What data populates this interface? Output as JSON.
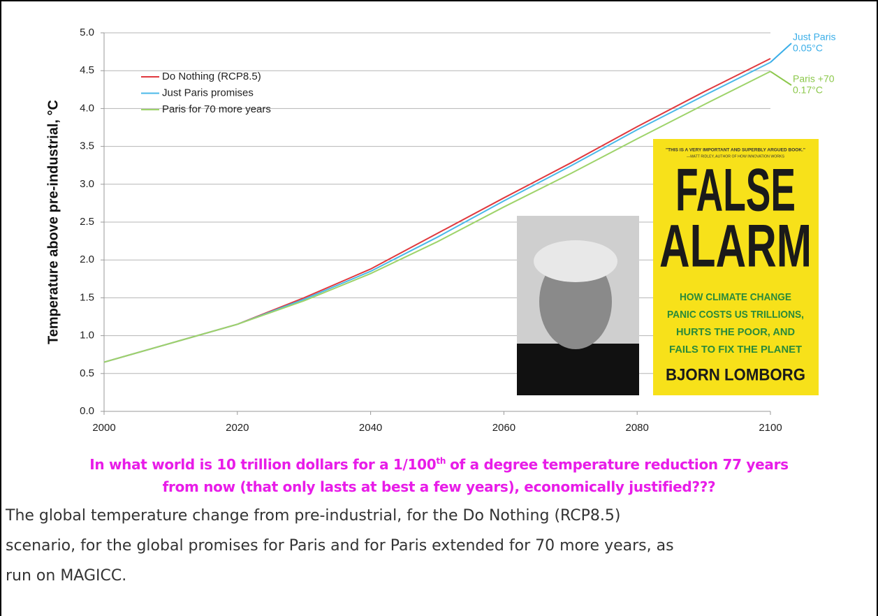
{
  "chart_data": {
    "type": "line",
    "y_label": "Temperature above pre-industrial, °C",
    "x": [
      2000,
      2010,
      2020,
      2030,
      2040,
      2050,
      2060,
      2070,
      2080,
      2090,
      2100
    ],
    "series": [
      {
        "name": "Do Nothing (RCP8.5)",
        "color": "#e0393e",
        "values": [
          0.65,
          0.9,
          1.15,
          1.5,
          1.88,
          2.35,
          2.82,
          3.28,
          3.76,
          4.22,
          4.66
        ]
      },
      {
        "name": "Just Paris promises",
        "color": "#4ab8e8",
        "values": [
          0.65,
          0.9,
          1.15,
          1.48,
          1.85,
          2.3,
          2.78,
          3.24,
          3.72,
          4.17,
          4.61
        ]
      },
      {
        "name": "Paris for 70 more years",
        "color": "#9ed36a",
        "values": [
          0.65,
          0.9,
          1.15,
          1.46,
          1.82,
          2.24,
          2.7,
          3.14,
          3.6,
          4.05,
          4.49
        ]
      }
    ],
    "xlim": [
      2000,
      2100
    ],
    "xticks": [
      2000,
      2020,
      2040,
      2060,
      2080,
      2100
    ],
    "ylim": [
      0,
      5
    ],
    "yticks": [
      {
        "value": 0,
        "label": "0.0"
      },
      0.5,
      {
        "value": 1,
        "label": "1.0"
      },
      1.5,
      {
        "value": 2,
        "label": "2.0"
      },
      2.5,
      {
        "value": 3,
        "label": "3.0"
      },
      3.5,
      {
        "value": 4,
        "label": "4.0"
      },
      4.5,
      {
        "value": 5,
        "label": "5.0"
      }
    ],
    "grid": true,
    "legend": "top-left",
    "annotations": [
      {
        "series": 1,
        "lines": [
          "Just Paris",
          "0.05°C"
        ],
        "color": "#3aaee8"
      },
      {
        "series": 2,
        "lines": [
          "Paris +70",
          "0.17°C"
        ],
        "color": "#8cc84b"
      }
    ]
  },
  "book_cover": {
    "quote": "\"THIS IS A VERY IMPORTANT AND SUPERBLY ARGUED BOOK.\"",
    "quote_author": "—MATT RIDLEY, AUTHOR OF HOW INNOVATION WORKS",
    "title_lines": [
      "FALSE",
      "ALARM"
    ],
    "subtitle_lines": [
      "HOW CLIMATE CHANGE",
      "PANIC COSTS US TRILLIONS,",
      "HURTS THE POOR, AND",
      "FAILS TO FIX THE PLANET"
    ],
    "author": "BJORN LOMBORG"
  },
  "caption": {
    "part1": "In what world is 10 trillion dollars for a 1/100",
    "sup": "th",
    "part2": "of a degree temperature reduction 77 years",
    "line2": "from now (that only lasts at best a few years), economically justified???"
  },
  "body_lines": [
    "The global temperature change from pre-industrial, for the Do Nothing (RCP8.5)",
    "scenario, for the global promises for Paris and for Paris extended for 70 more years, as",
    "run on MAGICC."
  ]
}
